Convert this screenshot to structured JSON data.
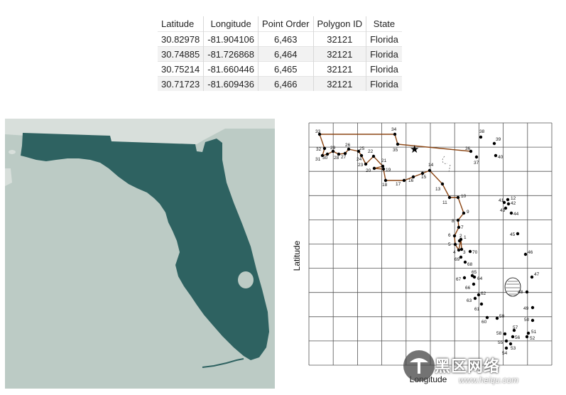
{
  "table": {
    "headers": [
      "Latitude",
      "Longitude",
      "Point Order",
      "Polygon ID",
      "State"
    ],
    "rows": [
      [
        "30.82978",
        "-81.904106",
        "6,463",
        "32121",
        "Florida"
      ],
      [
        "30.74885",
        "-81.726868",
        "6,464",
        "32121",
        "Florida"
      ],
      [
        "30.75214",
        "-81.660446",
        "6,465",
        "32121",
        "Florida"
      ],
      [
        "30.71723",
        "-81.609436",
        "6,466",
        "32121",
        "Florida"
      ]
    ]
  },
  "map": {
    "land_color": "#2e6261",
    "water_color": "#bccbc5",
    "bg_land_color": "#d8dfdb"
  },
  "plot": {
    "x_label": "Longitude",
    "y_label": "Latitude",
    "line_color": "#8b4513",
    "point_labels": [
      "1",
      "2",
      "3",
      "4",
      "5",
      "6",
      "7",
      "8",
      "9",
      "10",
      "11",
      "12",
      "13",
      "14",
      "15",
      "16",
      "17",
      "18",
      "19",
      "20",
      "21",
      "22",
      "23",
      "24",
      "25",
      "26",
      "27",
      "28",
      "29",
      "30",
      "31",
      "32",
      "33",
      "34",
      "35",
      "36",
      "37",
      "38",
      "39",
      "40",
      "41",
      "42",
      "43",
      "44",
      "45",
      "46",
      "47",
      "48",
      "49",
      "50",
      "51",
      "52",
      "53",
      "54",
      "55",
      "56",
      "57",
      "58",
      "59",
      "60",
      "61",
      "62",
      "63",
      "64",
      "65",
      "66",
      "67",
      "68",
      "69",
      "70"
    ]
  },
  "watermark": {
    "text": "黑区网络",
    "url": "www.heiqu.com"
  }
}
